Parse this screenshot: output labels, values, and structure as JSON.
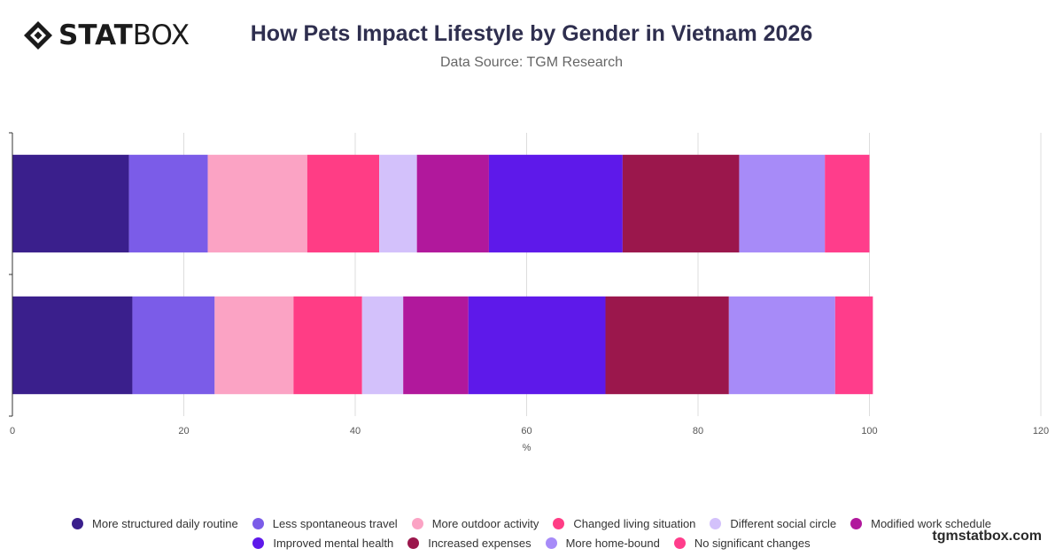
{
  "header": {
    "logo_bold": "STAT",
    "logo_light": "BOX",
    "title": "How Pets Impact Lifestyle by Gender in Vietnam 2026",
    "subtitle": "Data Source: TGM Research"
  },
  "footer": {
    "watermark": "tgmstatbox.com"
  },
  "chart_data": {
    "type": "bar",
    "orientation": "horizontal",
    "stacked": true,
    "categories": [
      "",
      ""
    ],
    "xlabel": "%",
    "ylabel": "",
    "xlim": [
      0,
      120
    ],
    "xticks": [
      0,
      20,
      40,
      60,
      80,
      100,
      120
    ],
    "grid": true,
    "legend_position": "bottom",
    "series": [
      {
        "name": "More structured daily routine",
        "color": "#3a1f8c",
        "values": [
          13.6,
          14.0
        ]
      },
      {
        "name": "Less spontaneous travel",
        "color": "#7b5ce8",
        "values": [
          9.2,
          9.6
        ]
      },
      {
        "name": "More outdoor activity",
        "color": "#fba3c4",
        "values": [
          11.6,
          9.2
        ]
      },
      {
        "name": "Changed living situation",
        "color": "#ff3d85",
        "values": [
          8.4,
          8.0
        ]
      },
      {
        "name": "Different social circle",
        "color": "#d3c1fb",
        "values": [
          4.4,
          4.8
        ]
      },
      {
        "name": "Modified work schedule",
        "color": "#b1189c",
        "values": [
          8.4,
          7.6
        ]
      },
      {
        "name": "Improved mental health",
        "color": "#5e19ea",
        "values": [
          15.6,
          16.0
        ]
      },
      {
        "name": "Increased expenses",
        "color": "#9b174c",
        "values": [
          13.6,
          14.4
        ]
      },
      {
        "name": "More home-bound",
        "color": "#a78bf8",
        "values": [
          10.0,
          12.4
        ]
      },
      {
        "name": "No significant changes",
        "color": "#ff3d8b",
        "values": [
          5.2,
          4.4
        ]
      }
    ]
  }
}
